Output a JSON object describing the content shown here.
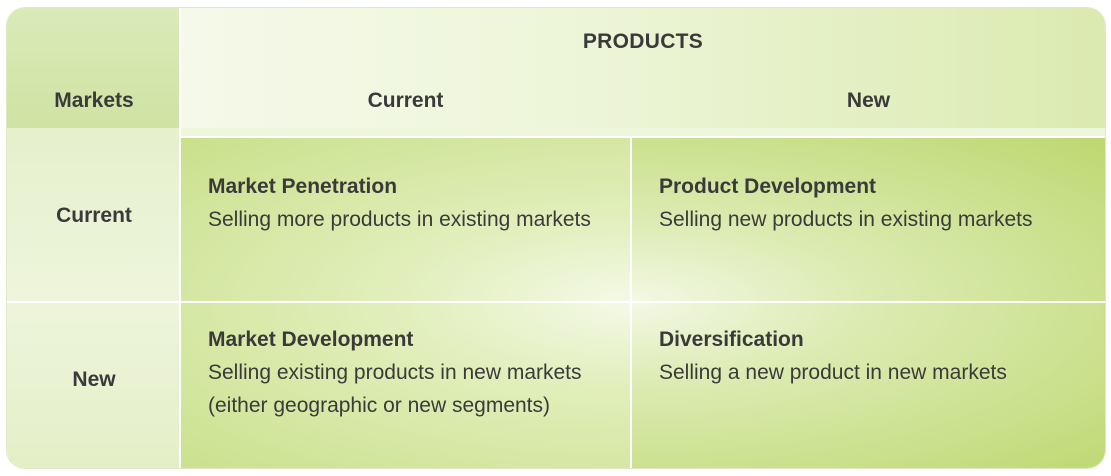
{
  "header": {
    "products": "PRODUCTS",
    "markets": "Markets",
    "columns": [
      "Current",
      "New"
    ]
  },
  "rows": [
    "Current",
    "New"
  ],
  "quadrants": [
    {
      "title": "Market Penetration",
      "desc": "Selling more products in existing markets"
    },
    {
      "title": "Product Development",
      "desc": "Selling new products in existing markets"
    },
    {
      "title": "Market Development",
      "desc": "Selling existing products in new markets (either geographic or new segments)"
    },
    {
      "title": "Diversification",
      "desc": "Selling a new product in new markets"
    }
  ],
  "colors": {
    "text": "#3a3a3a",
    "accent": "#bcd870",
    "pale": "#eef6dc"
  }
}
